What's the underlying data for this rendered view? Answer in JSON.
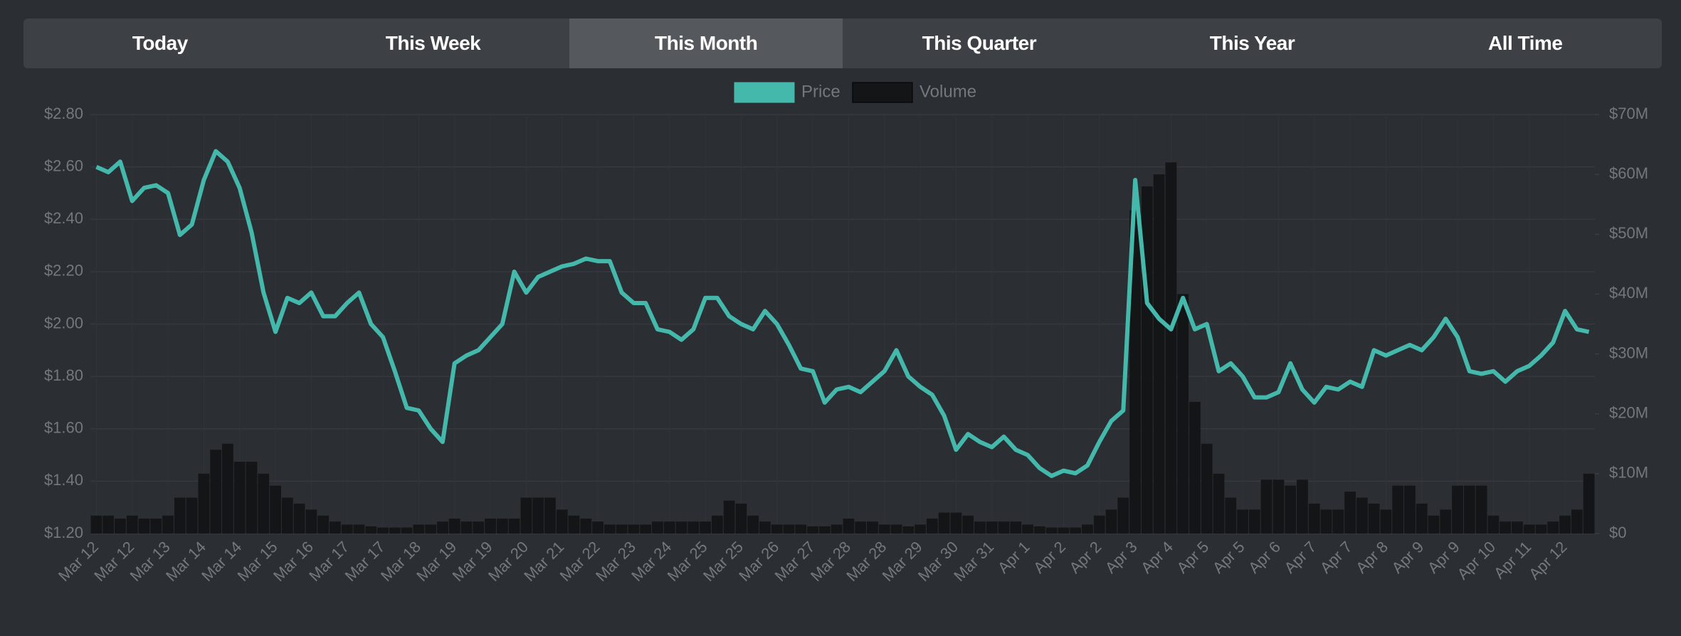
{
  "tabs": [
    "Today",
    "This Week",
    "This Month",
    "This Quarter",
    "This Year",
    "All Time"
  ],
  "active_tab": 2,
  "chart_data": {
    "type": "line-bar",
    "categories": [
      "Mar 12",
      null,
      null,
      "Mar 12",
      null,
      null,
      "Mar 13",
      null,
      null,
      "Mar 14",
      null,
      null,
      "Mar 14",
      null,
      null,
      "Mar 15",
      null,
      null,
      "Mar 16",
      null,
      null,
      "Mar 17",
      null,
      null,
      "Mar 17",
      null,
      null,
      "Mar 18",
      null,
      null,
      "Mar 19",
      null,
      null,
      "Mar 19",
      null,
      null,
      "Mar 20",
      null,
      null,
      "Mar 21",
      null,
      null,
      "Mar 22",
      null,
      null,
      "Mar 23",
      null,
      null,
      "Mar 24",
      null,
      null,
      "Mar 25",
      null,
      null,
      "Mar 25",
      null,
      null,
      "Mar 26",
      null,
      null,
      "Mar 27",
      null,
      null,
      "Mar 28",
      null,
      null,
      "Mar 28",
      null,
      null,
      "Mar 29",
      null,
      null,
      "Mar 30",
      null,
      null,
      "Mar 31",
      null,
      null,
      "Apr 1",
      null,
      null,
      "Apr 2",
      null,
      null,
      "Apr 2",
      null,
      null,
      "Apr 3",
      null,
      null,
      "Apr 4",
      null,
      null,
      "Apr 5",
      null,
      null,
      "Apr 5",
      null,
      null,
      "Apr 6",
      null,
      null,
      "Apr 7",
      null,
      null,
      "Apr 7",
      null,
      null,
      "Apr 8",
      null,
      null,
      "Apr 9",
      null,
      null,
      "Apr 9",
      null,
      null,
      "Apr 10",
      null,
      null,
      "Apr 11",
      null,
      null,
      "Apr 12",
      null,
      null
    ],
    "series": [
      {
        "name": "Price",
        "type": "line",
        "color": "#45b8ac",
        "values": [
          2.6,
          2.58,
          2.62,
          2.47,
          2.52,
          2.53,
          2.5,
          2.34,
          2.38,
          2.55,
          2.66,
          2.62,
          2.52,
          2.35,
          2.12,
          1.97,
          2.1,
          2.08,
          2.12,
          2.03,
          2.03,
          2.08,
          2.12,
          2.0,
          1.95,
          1.82,
          1.68,
          1.67,
          1.6,
          1.55,
          1.85,
          1.88,
          1.9,
          1.95,
          2.0,
          2.2,
          2.12,
          2.18,
          2.2,
          2.22,
          2.23,
          2.25,
          2.24,
          2.24,
          2.12,
          2.08,
          2.08,
          1.98,
          1.97,
          1.94,
          1.98,
          2.1,
          2.1,
          2.03,
          2.0,
          1.98,
          2.05,
          2.0,
          1.92,
          1.83,
          1.82,
          1.7,
          1.75,
          1.76,
          1.74,
          1.78,
          1.82,
          1.9,
          1.8,
          1.76,
          1.73,
          1.65,
          1.52,
          1.58,
          1.55,
          1.53,
          1.57,
          1.52,
          1.5,
          1.45,
          1.42,
          1.44,
          1.43,
          1.46,
          1.55,
          1.63,
          1.67,
          2.55,
          2.08,
          2.02,
          1.98,
          2.1,
          1.98,
          2.0,
          1.82,
          1.85,
          1.8,
          1.72,
          1.72,
          1.74,
          1.85,
          1.75,
          1.7,
          1.76,
          1.75,
          1.78,
          1.76,
          1.9,
          1.88,
          1.9,
          1.92,
          1.9,
          1.95,
          2.02,
          1.95,
          1.82,
          1.81,
          1.82,
          1.78,
          1.82,
          1.84,
          1.88,
          1.93,
          2.05,
          1.98,
          1.97
        ]
      },
      {
        "name": "Volume",
        "type": "bar",
        "axis": "y2",
        "color": "#141516",
        "values": [
          3,
          3,
          2.5,
          3,
          2.5,
          2.5,
          3,
          6,
          6,
          10,
          14,
          15,
          12,
          12,
          10,
          8,
          6,
          5,
          4,
          3,
          2,
          1.5,
          1.5,
          1.2,
          1,
          1,
          1,
          1.5,
          1.5,
          2,
          2.5,
          2,
          2,
          2.5,
          2.5,
          2.5,
          6,
          6,
          6,
          4,
          3,
          2.5,
          2,
          1.5,
          1.5,
          1.5,
          1.5,
          2,
          2,
          2,
          2,
          2,
          3,
          5.5,
          5,
          3,
          2,
          1.5,
          1.5,
          1.5,
          1.2,
          1.2,
          1.5,
          2.5,
          2,
          2,
          1.5,
          1.5,
          1.2,
          1.5,
          2.5,
          3.5,
          3.5,
          3,
          2,
          2,
          2,
          2,
          1.5,
          1.2,
          1,
          1,
          1,
          1.5,
          3,
          4,
          6,
          54,
          58,
          60,
          62,
          40,
          22,
          15,
          10,
          6,
          4,
          4,
          9,
          9,
          8,
          9,
          5,
          4,
          4,
          7,
          6,
          5,
          4,
          8,
          8,
          5,
          3,
          4,
          8,
          8,
          8,
          3,
          2,
          2,
          1.5,
          1.5,
          2,
          3,
          4,
          10
        ]
      }
    ],
    "ylim": [
      1.2,
      2.8
    ],
    "yticks": [
      {
        "value": 1.2,
        "label": "$1.20"
      },
      {
        "value": 1.4,
        "label": "$1.40"
      },
      {
        "value": 1.6,
        "label": "$1.60"
      },
      {
        "value": 1.8,
        "label": "$1.80"
      },
      {
        "value": 2.0,
        "label": "$2.00"
      },
      {
        "value": 2.2,
        "label": "$2.20"
      },
      {
        "value": 2.4,
        "label": "$2.40"
      },
      {
        "value": 2.6,
        "label": "$2.60"
      },
      {
        "value": 2.8,
        "label": "$2.80"
      }
    ],
    "y2lim": [
      0,
      70
    ],
    "y2ticks": [
      {
        "value": 0,
        "label": "$0"
      },
      {
        "value": 10,
        "label": "$10M"
      },
      {
        "value": 20,
        "label": "$20M"
      },
      {
        "value": 30,
        "label": "$30M"
      },
      {
        "value": 40,
        "label": "$40M"
      },
      {
        "value": 50,
        "label": "$50M"
      },
      {
        "value": 60,
        "label": "$60M"
      },
      {
        "value": 70,
        "label": "$70M"
      }
    ],
    "grid": true,
    "legend": "top"
  }
}
